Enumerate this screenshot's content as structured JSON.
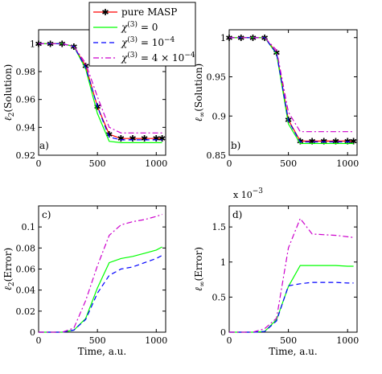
{
  "legend": {
    "entries": [
      {
        "label": "pure MASP",
        "color": "#ff0000",
        "dash": "",
        "marker": "star"
      },
      {
        "label": "χ(3) = 0",
        "color": "#00ff00",
        "dash": "",
        "marker": ""
      },
      {
        "label": "χ(3) = 10−4",
        "color": "#0000ff",
        "dash": "6,4",
        "marker": ""
      },
      {
        "label": "χ(3) = 4 × 10−4",
        "color": "#cc00cc",
        "dash": "7,3,2,3",
        "marker": ""
      }
    ]
  },
  "chart_data": [
    {
      "type": "line",
      "panel": "a)",
      "xlabel": "",
      "ylabel": "ℓ2(Solution)",
      "xlim": [
        0,
        1080
      ],
      "ylim": [
        0.92,
        1.01
      ],
      "xticks": [
        0,
        500,
        1000
      ],
      "yticks": [
        0.92,
        0.94,
        0.96,
        0.98,
        1
      ],
      "ytick_labels": [
        "0.92",
        "0.94",
        "0.96",
        "0.98",
        "1"
      ],
      "exponent_label": "",
      "series": [
        {
          "name": "pure MASP",
          "x": [
            0,
            100,
            200,
            300,
            400,
            500,
            600,
            700,
            800,
            900,
            1000,
            1050
          ],
          "y": [
            1,
            1,
            1,
            0.998,
            0.984,
            0.955,
            0.935,
            0.932,
            0.932,
            0.932,
            0.932,
            0.932
          ]
        },
        {
          "name": "χ(3) = 0",
          "x": [
            0,
            100,
            200,
            300,
            400,
            500,
            600,
            700,
            800,
            900,
            1000,
            1050
          ],
          "y": [
            1,
            1,
            1,
            0.998,
            0.982,
            0.95,
            0.93,
            0.929,
            0.929,
            0.929,
            0.929,
            0.929
          ]
        },
        {
          "name": "χ(3) = 10−4",
          "x": [
            0,
            100,
            200,
            300,
            400,
            500,
            600,
            700,
            800,
            900,
            1000,
            1050
          ],
          "y": [
            1,
            1,
            1,
            0.998,
            0.983,
            0.955,
            0.933,
            0.931,
            0.931,
            0.931,
            0.931,
            0.931
          ]
        },
        {
          "name": "χ(3) = 4 × 10−4",
          "x": [
            0,
            100,
            200,
            300,
            400,
            500,
            600,
            700,
            800,
            900,
            1000,
            1050
          ],
          "y": [
            1,
            1,
            1,
            0.998,
            0.986,
            0.962,
            0.94,
            0.936,
            0.936,
            0.936,
            0.936,
            0.936
          ]
        }
      ]
    },
    {
      "type": "line",
      "panel": "b)",
      "xlabel": "",
      "ylabel": "ℓ∞(Solution)",
      "xlim": [
        0,
        1080
      ],
      "ylim": [
        0.85,
        1.01
      ],
      "xticks": [
        0,
        500,
        1000
      ],
      "yticks": [
        0.85,
        0.9,
        0.95,
        1
      ],
      "ytick_labels": [
        "0.85",
        "0.9",
        "0.95",
        "1"
      ],
      "exponent_label": "",
      "series": [
        {
          "name": "pure MASP",
          "x": [
            0,
            100,
            200,
            300,
            400,
            500,
            600,
            700,
            800,
            900,
            1000,
            1050
          ],
          "y": [
            1,
            1,
            1,
            1,
            0.981,
            0.895,
            0.868,
            0.868,
            0.868,
            0.868,
            0.868,
            0.868
          ]
        },
        {
          "name": "χ(3) = 0",
          "x": [
            0,
            100,
            200,
            300,
            400,
            500,
            600,
            700,
            800,
            900,
            1000,
            1050
          ],
          "y": [
            1,
            1,
            1,
            1,
            0.979,
            0.89,
            0.865,
            0.865,
            0.865,
            0.865,
            0.865,
            0.865
          ]
        },
        {
          "name": "χ(3) = 10−4",
          "x": [
            0,
            100,
            200,
            300,
            400,
            500,
            600,
            700,
            800,
            900,
            1000,
            1050
          ],
          "y": [
            1,
            1,
            1,
            1,
            0.98,
            0.894,
            0.867,
            0.867,
            0.867,
            0.867,
            0.867,
            0.867
          ]
        },
        {
          "name": "χ(3) = 4 × 10−4",
          "x": [
            0,
            100,
            200,
            300,
            400,
            500,
            600,
            700,
            800,
            900,
            1000,
            1050
          ],
          "y": [
            1,
            1,
            1,
            1,
            0.984,
            0.905,
            0.88,
            0.88,
            0.88,
            0.88,
            0.88,
            0.88
          ]
        }
      ]
    },
    {
      "type": "line",
      "panel": "c)",
      "xlabel": "Time, a.u.",
      "ylabel": "ℓ2(Error)",
      "xlim": [
        0,
        1080
      ],
      "ylim": [
        0,
        0.12
      ],
      "xticks": [
        0,
        500,
        1000
      ],
      "yticks": [
        0,
        0.02,
        0.04,
        0.06,
        0.08,
        0.1
      ],
      "ytick_labels": [
        "0",
        "0.02",
        "0.04",
        "0.06",
        "0.08",
        "0.1"
      ],
      "exponent_label": "",
      "series": [
        {
          "name": "χ(3) = 0",
          "x": [
            0,
            200,
            300,
            400,
            500,
            600,
            700,
            800,
            900,
            1000,
            1050
          ],
          "y": [
            0,
            0,
            0.002,
            0.013,
            0.042,
            0.066,
            0.07,
            0.072,
            0.075,
            0.078,
            0.081
          ]
        },
        {
          "name": "χ(3) = 10−4",
          "x": [
            0,
            200,
            300,
            400,
            500,
            600,
            700,
            800,
            900,
            1000,
            1050
          ],
          "y": [
            0,
            0,
            0.002,
            0.012,
            0.037,
            0.054,
            0.06,
            0.062,
            0.066,
            0.07,
            0.073
          ]
        },
        {
          "name": "χ(3) = 4 × 10−4",
          "x": [
            0,
            200,
            300,
            400,
            500,
            600,
            700,
            800,
            900,
            1000,
            1050
          ],
          "y": [
            0,
            0,
            0.004,
            0.03,
            0.063,
            0.092,
            0.102,
            0.105,
            0.107,
            0.11,
            0.112
          ]
        }
      ]
    },
    {
      "type": "line",
      "panel": "d)",
      "xlabel": "Time, a.u.",
      "ylabel": "ℓ∞(Error)",
      "xlim": [
        0,
        1080
      ],
      "ylim": [
        0,
        0.0018
      ],
      "xticks": [
        0,
        500,
        1000
      ],
      "yticks": [
        0,
        0.0005,
        0.001,
        0.0015
      ],
      "ytick_labels": [
        "0",
        "0.5",
        "1",
        "1.5"
      ],
      "exponent_label": "x 10−3",
      "series": [
        {
          "name": "χ(3) = 0",
          "x": [
            0,
            200,
            300,
            400,
            500,
            600,
            700,
            800,
            900,
            1000,
            1050
          ],
          "y": [
            0,
            0,
            1e-05,
            0.00018,
            0.00065,
            0.00095,
            0.00095,
            0.00095,
            0.00095,
            0.00094,
            0.00094
          ]
        },
        {
          "name": "χ(3) = 10−4",
          "x": [
            0,
            200,
            300,
            400,
            500,
            600,
            700,
            800,
            900,
            1000,
            1050
          ],
          "y": [
            0,
            0,
            1e-05,
            0.00016,
            0.00066,
            0.00069,
            0.00071,
            0.00071,
            0.00071,
            0.0007,
            0.0007
          ]
        },
        {
          "name": "χ(3) = 4 × 10−4",
          "x": [
            0,
            200,
            300,
            400,
            500,
            600,
            700,
            800,
            900,
            1000,
            1050
          ],
          "y": [
            0,
            0,
            5e-05,
            0.0002,
            0.0012,
            0.00162,
            0.0014,
            0.00139,
            0.00138,
            0.00136,
            0.00135
          ]
        }
      ]
    }
  ]
}
